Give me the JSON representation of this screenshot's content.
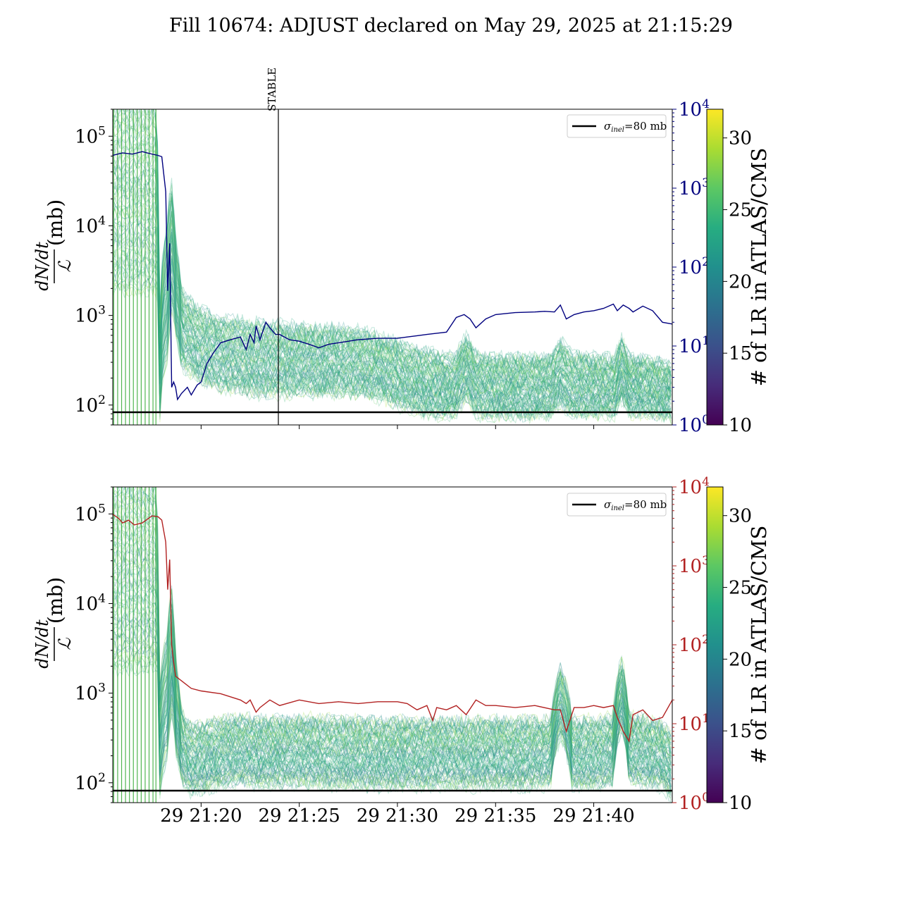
{
  "figure": {
    "title": "Fill 10674: ADJUST declared on May 29, 2025 at 21:15:29"
  },
  "colors": {
    "top_right_axis": "#00007f",
    "bottom_right_axis": "#b22222",
    "reference_line": "#000000",
    "stable_marker": "#000000"
  },
  "chart_data": [
    {
      "type": "line",
      "panel": "top",
      "ylabel": {
        "numerator": "dN/dt",
        "denominator": "ℒ",
        "unit": "(mb)"
      },
      "yscale": "log",
      "ylim": [
        60,
        200000
      ],
      "yticks": [
        {
          "value": 100,
          "base": "10",
          "exp": "2"
        },
        {
          "value": 1000,
          "base": "10",
          "exp": "3"
        },
        {
          "value": 10000,
          "base": "10",
          "exp": "4"
        },
        {
          "value": 100000,
          "base": "10",
          "exp": "5"
        }
      ],
      "xlim_minutes": [
        15.5,
        44.0
      ],
      "xticks_minutes": [
        20,
        25,
        30,
        35,
        40
      ],
      "xtick_labels_visible": false,
      "right_axis": {
        "scale": "log",
        "ylim": [
          1,
          10000
        ],
        "ticks": [
          {
            "value": 1,
            "base": "10",
            "exp": "0"
          },
          {
            "value": 10,
            "base": "10",
            "exp": "1"
          },
          {
            "value": 100,
            "base": "10",
            "exp": "2"
          },
          {
            "value": 1000,
            "base": "10",
            "exp": "3"
          },
          {
            "value": 10000,
            "base": "10",
            "exp": "4"
          }
        ],
        "color": "#00007f"
      },
      "legend": {
        "position": "top-right",
        "entries": [
          {
            "symbol": "σ",
            "subscript": "inel",
            "text": "=80 mb"
          }
        ]
      },
      "reference_line": {
        "value": 80
      },
      "stable_marker": {
        "minute": 23.95,
        "label": "STABLE"
      },
      "colorbar": {
        "label": "# of LR in ATLAS/CMS",
        "range": [
          10,
          32
        ],
        "ticks": [
          10,
          15,
          20,
          25,
          30
        ],
        "colormap": "viridis"
      },
      "band": {
        "n_lines": 90,
        "minutes": [
          15.5,
          17.7,
          17.9,
          18.3,
          18.5,
          18.7,
          19.0,
          19.5,
          20.0,
          21.0,
          22.0,
          23.0,
          24.0,
          25.0,
          26.0,
          27.0,
          28.0,
          29.0,
          29.8,
          30.5,
          31.5,
          32.5,
          33.0,
          33.5,
          34.0,
          35.0,
          36.0,
          37.0,
          37.8,
          38.3,
          38.9,
          39.5,
          40.5,
          41.1,
          41.4,
          41.8,
          42.5,
          43.5,
          44.0
        ],
        "center": [
          20000,
          20000,
          300,
          2000,
          6000,
          2000,
          700,
          550,
          450,
          380,
          350,
          330,
          320,
          320,
          310,
          310,
          300,
          270,
          230,
          200,
          175,
          160,
          170,
          260,
          170,
          160,
          160,
          160,
          160,
          230,
          165,
          165,
          160,
          160,
          260,
          165,
          160,
          150,
          140
        ],
        "spread_dex": [
          1.2,
          1.2,
          0.7,
          0.9,
          0.8,
          0.6,
          0.5,
          0.45,
          0.45,
          0.45,
          0.45,
          0.45,
          0.45,
          0.42,
          0.42,
          0.42,
          0.4,
          0.4,
          0.4,
          0.4,
          0.4,
          0.38,
          0.38,
          0.4,
          0.38,
          0.38,
          0.38,
          0.38,
          0.38,
          0.4,
          0.38,
          0.38,
          0.36,
          0.36,
          0.4,
          0.36,
          0.36,
          0.34,
          0.32
        ],
        "spikes_minutes": [
          15.55,
          15.75,
          15.95,
          16.15,
          16.35,
          16.55,
          16.75,
          16.95,
          17.15,
          17.35,
          17.55,
          17.7
        ]
      },
      "series": [
        {
          "x_minutes": [
            15.5,
            16.0,
            16.5,
            17.0,
            17.5,
            17.8,
            18.0,
            18.2,
            18.3,
            18.4,
            18.5,
            18.6,
            18.7,
            18.8,
            19.0,
            19.3,
            19.5,
            19.8,
            20.0,
            20.3,
            20.6,
            21.0,
            21.5,
            22.0,
            22.3,
            22.5,
            22.7,
            22.8,
            23.0,
            23.3,
            23.5,
            23.8,
            24.0,
            24.5,
            25.0,
            25.5,
            26.0,
            26.5,
            27.0,
            28.0,
            29.0,
            30.0,
            30.5,
            31.0,
            31.5,
            32.0,
            32.5,
            33.0,
            33.4,
            33.7,
            34.0,
            34.5,
            35.0,
            36.0,
            37.0,
            37.5,
            38.0,
            38.3,
            38.6,
            39.0,
            39.5,
            40.0,
            40.5,
            41.0,
            41.2,
            41.5,
            41.8,
            42.0,
            42.5,
            43.0,
            43.5,
            44.0
          ],
          "y": [
            2600,
            2800,
            2700,
            2900,
            2700,
            2600,
            2500,
            900,
            50,
            200,
            3.0,
            3.5,
            3.0,
            2.1,
            2.5,
            3.0,
            2.4,
            3.2,
            3.5,
            6.0,
            8.0,
            11.0,
            12.0,
            13.0,
            9.0,
            14.0,
            11.0,
            18.0,
            12.0,
            20.0,
            17.0,
            14.0,
            14.0,
            12.0,
            11.5,
            10.5,
            9.5,
            10.5,
            11.0,
            12.0,
            12.5,
            12.5,
            13.0,
            13.5,
            14.0,
            14.5,
            15.0,
            23.0,
            25.0,
            22.0,
            17.0,
            22.0,
            25.0,
            26.5,
            27.0,
            27.5,
            27.0,
            33.0,
            22.0,
            25.0,
            27.0,
            28.0,
            30.0,
            34.0,
            28.0,
            33.0,
            30.0,
            27.0,
            32.0,
            28.0,
            20.0,
            19.0
          ]
        }
      ]
    },
    {
      "type": "line",
      "panel": "bottom",
      "ylabel": {
        "numerator": "dN/dt",
        "denominator": "ℒ",
        "unit": "(mb)"
      },
      "yscale": "log",
      "ylim": [
        60,
        200000
      ],
      "yticks": [
        {
          "value": 100,
          "base": "10",
          "exp": "2"
        },
        {
          "value": 1000,
          "base": "10",
          "exp": "3"
        },
        {
          "value": 10000,
          "base": "10",
          "exp": "4"
        },
        {
          "value": 100000,
          "base": "10",
          "exp": "5"
        }
      ],
      "xlim_minutes": [
        15.5,
        44.0
      ],
      "xticks_minutes": [
        20,
        25,
        30,
        35,
        40
      ],
      "xtick_labels": [
        "29 21:20",
        "29 21:25",
        "29 21:30",
        "29 21:35",
        "29 21:40"
      ],
      "right_axis": {
        "scale": "log",
        "ylim": [
          1,
          10000
        ],
        "ticks": [
          {
            "value": 1,
            "base": "10",
            "exp": "0"
          },
          {
            "value": 10,
            "base": "10",
            "exp": "1"
          },
          {
            "value": 100,
            "base": "10",
            "exp": "2"
          },
          {
            "value": 1000,
            "base": "10",
            "exp": "3"
          },
          {
            "value": 10000,
            "base": "10",
            "exp": "4"
          }
        ],
        "color": "#b22222"
      },
      "legend": {
        "position": "top-right",
        "entries": [
          {
            "symbol": "σ",
            "subscript": "inel",
            "text": "=80 mb"
          }
        ]
      },
      "reference_line": {
        "value": 80
      },
      "colorbar": {
        "label": "# of LR in ATLAS/CMS",
        "range": [
          10,
          32
        ],
        "ticks": [
          10,
          15,
          20,
          25,
          30
        ],
        "colormap": "viridis"
      },
      "band": {
        "n_lines": 90,
        "minutes": [
          15.5,
          17.7,
          17.9,
          18.3,
          18.5,
          18.7,
          19.0,
          19.5,
          20.0,
          21.0,
          22.0,
          23.0,
          24.0,
          25.0,
          26.0,
          27.0,
          28.0,
          29.0,
          30.0,
          31.0,
          32.0,
          33.0,
          34.0,
          35.0,
          36.0,
          37.0,
          37.8,
          38.3,
          38.9,
          39.5,
          40.5,
          41.0,
          41.4,
          41.8,
          42.5,
          43.5,
          44.0
        ],
        "center": [
          20000,
          20000,
          300,
          1000,
          3000,
          700,
          250,
          180,
          190,
          220,
          230,
          220,
          220,
          230,
          220,
          215,
          215,
          210,
          215,
          210,
          215,
          210,
          210,
          215,
          210,
          215,
          215,
          800,
          215,
          215,
          220,
          230,
          1000,
          240,
          230,
          200,
          150
        ],
        "spread_dex": [
          1.2,
          1.2,
          0.7,
          0.8,
          0.8,
          0.6,
          0.45,
          0.42,
          0.42,
          0.42,
          0.42,
          0.42,
          0.42,
          0.42,
          0.42,
          0.42,
          0.42,
          0.42,
          0.42,
          0.42,
          0.42,
          0.42,
          0.42,
          0.42,
          0.42,
          0.42,
          0.42,
          0.45,
          0.42,
          0.42,
          0.42,
          0.42,
          0.45,
          0.42,
          0.42,
          0.4,
          0.4
        ],
        "spikes_minutes": [
          15.55,
          15.75,
          15.95,
          16.15,
          16.35,
          16.55,
          16.75,
          16.95,
          17.15,
          17.35,
          17.55,
          17.7
        ]
      },
      "series": [
        {
          "x_minutes": [
            15.5,
            15.8,
            16.0,
            16.3,
            16.6,
            17.0,
            17.5,
            17.8,
            18.0,
            18.2,
            18.3,
            18.4,
            18.5,
            18.6,
            18.7,
            19.0,
            19.5,
            20.0,
            21.0,
            22.0,
            22.3,
            22.5,
            22.8,
            23.0,
            23.5,
            24.0,
            25.0,
            26.0,
            27.0,
            28.0,
            29.0,
            30.0,
            30.5,
            31.0,
            31.5,
            31.8,
            32.0,
            32.5,
            33.0,
            33.5,
            34.0,
            34.5,
            35.0,
            36.0,
            37.0,
            38.0,
            38.3,
            38.6,
            39.0,
            39.5,
            40.0,
            40.5,
            41.0,
            41.2,
            41.5,
            41.8,
            42.0,
            42.5,
            43.0,
            43.5,
            44.0
          ],
          "y": [
            4500,
            4000,
            3500,
            3800,
            3300,
            3500,
            4300,
            4200,
            3800,
            2000,
            500,
            1200,
            100,
            60,
            40,
            35,
            28,
            26,
            24,
            20,
            18,
            20,
            14,
            16,
            20,
            17,
            20,
            18,
            19,
            18,
            19,
            19,
            18,
            15,
            17,
            11,
            16,
            15,
            17,
            13,
            20,
            17,
            17,
            16,
            17,
            15,
            15,
            8,
            16,
            16,
            17,
            16,
            17,
            12,
            8,
            6,
            13,
            15,
            11,
            12,
            20
          ]
        }
      ]
    }
  ]
}
